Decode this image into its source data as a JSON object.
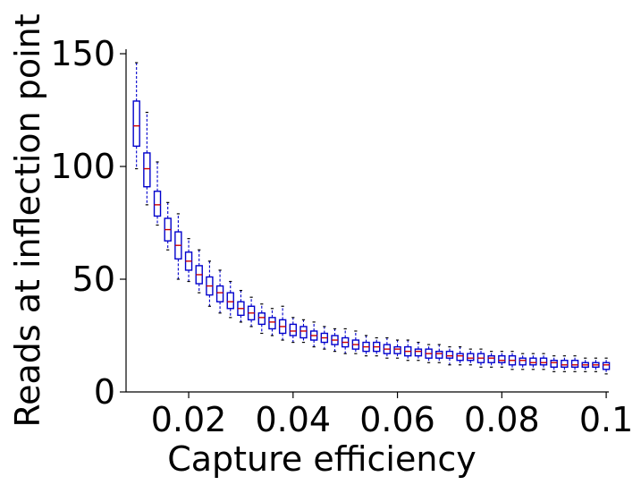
{
  "chart_data": {
    "type": "box",
    "xlabel": "Capture efficiency",
    "ylabel": "Reads at inflection point",
    "xlim": [
      0.008,
      0.1005
    ],
    "ylim": [
      0,
      152
    ],
    "xticks": [
      {
        "value": 0.02,
        "label": "0.02"
      },
      {
        "value": 0.04,
        "label": "0.04"
      },
      {
        "value": 0.06,
        "label": "0.06"
      },
      {
        "value": 0.08,
        "label": "0.08"
      },
      {
        "value": 0.1,
        "label": "0.1"
      }
    ],
    "yticks": [
      {
        "value": 0,
        "label": "0"
      },
      {
        "value": 50,
        "label": "50"
      },
      {
        "value": 100,
        "label": "100"
      },
      {
        "value": 150,
        "label": "150"
      }
    ],
    "grid": false,
    "colors": {
      "box": "#0000cc",
      "median": "#cc0000",
      "cap": "#000000"
    },
    "boxes": [
      {
        "x": 0.01,
        "whislo": 99,
        "q1": 109,
        "med": 118,
        "q3": 129,
        "whishi": 146
      },
      {
        "x": 0.012,
        "whislo": 83,
        "q1": 91,
        "med": 99,
        "q3": 106,
        "whishi": 124
      },
      {
        "x": 0.014,
        "whislo": 74,
        "q1": 78,
        "med": 83,
        "q3": 89,
        "whishi": 102
      },
      {
        "x": 0.016,
        "whislo": 63,
        "q1": 67,
        "med": 72,
        "q3": 77,
        "whishi": 84
      },
      {
        "x": 0.018,
        "whislo": 50,
        "q1": 59,
        "med": 65,
        "q3": 71,
        "whishi": 79
      },
      {
        "x": 0.02,
        "whislo": 49,
        "q1": 54,
        "med": 58,
        "q3": 62,
        "whishi": 68
      },
      {
        "x": 0.022,
        "whislo": 44,
        "q1": 48,
        "med": 52,
        "q3": 56,
        "whishi": 63
      },
      {
        "x": 0.024,
        "whislo": 38,
        "q1": 43,
        "med": 47,
        "q3": 51,
        "whishi": 58
      },
      {
        "x": 0.026,
        "whislo": 35,
        "q1": 40,
        "med": 44,
        "q3": 47,
        "whishi": 54
      },
      {
        "x": 0.028,
        "whislo": 33,
        "q1": 37,
        "med": 40,
        "q3": 44,
        "whishi": 49
      },
      {
        "x": 0.03,
        "whislo": 31,
        "q1": 34,
        "med": 37,
        "q3": 40,
        "whishi": 45
      },
      {
        "x": 0.032,
        "whislo": 29,
        "q1": 32,
        "med": 35,
        "q3": 38,
        "whishi": 42
      },
      {
        "x": 0.034,
        "whislo": 26,
        "q1": 30,
        "med": 33,
        "q3": 35,
        "whishi": 39
      },
      {
        "x": 0.036,
        "whislo": 25,
        "q1": 28,
        "med": 31,
        "q3": 33,
        "whishi": 37
      },
      {
        "x": 0.038,
        "whislo": 23,
        "q1": 26,
        "med": 29,
        "q3": 32,
        "whishi": 38
      },
      {
        "x": 0.04,
        "whislo": 22,
        "q1": 25,
        "med": 27,
        "q3": 30,
        "whishi": 33
      },
      {
        "x": 0.042,
        "whislo": 22,
        "q1": 24,
        "med": 27,
        "q3": 29,
        "whishi": 32
      },
      {
        "x": 0.044,
        "whislo": 20,
        "q1": 23,
        "med": 25,
        "q3": 27,
        "whishi": 31
      },
      {
        "x": 0.046,
        "whislo": 19,
        "q1": 22,
        "med": 24,
        "q3": 26,
        "whishi": 29
      },
      {
        "x": 0.048,
        "whislo": 18,
        "q1": 21,
        "med": 23,
        "q3": 25,
        "whishi": 28
      },
      {
        "x": 0.05,
        "whislo": 17,
        "q1": 20,
        "med": 22,
        "q3": 24,
        "whishi": 28
      },
      {
        "x": 0.052,
        "whislo": 17,
        "q1": 19,
        "med": 21,
        "q3": 23,
        "whishi": 27
      },
      {
        "x": 0.054,
        "whislo": 16,
        "q1": 18,
        "med": 20,
        "q3": 22,
        "whishi": 25
      },
      {
        "x": 0.056,
        "whislo": 16,
        "q1": 18,
        "med": 20,
        "q3": 22,
        "whishi": 24
      },
      {
        "x": 0.058,
        "whislo": 15,
        "q1": 17,
        "med": 19,
        "q3": 21,
        "whishi": 24
      },
      {
        "x": 0.06,
        "whislo": 15,
        "q1": 17,
        "med": 19,
        "q3": 20,
        "whishi": 23
      },
      {
        "x": 0.062,
        "whislo": 14,
        "q1": 16,
        "med": 18,
        "q3": 20,
        "whishi": 23
      },
      {
        "x": 0.064,
        "whislo": 14,
        "q1": 16,
        "med": 18,
        "q3": 19,
        "whishi": 22
      },
      {
        "x": 0.066,
        "whislo": 13,
        "q1": 15,
        "med": 17,
        "q3": 19,
        "whishi": 21
      },
      {
        "x": 0.068,
        "whislo": 13,
        "q1": 15,
        "med": 17,
        "q3": 18,
        "whishi": 21
      },
      {
        "x": 0.07,
        "whislo": 12,
        "q1": 15,
        "med": 16,
        "q3": 18,
        "whishi": 20
      },
      {
        "x": 0.072,
        "whislo": 12,
        "q1": 14,
        "med": 16,
        "q3": 17,
        "whishi": 20
      },
      {
        "x": 0.074,
        "whislo": 12,
        "q1": 14,
        "med": 15,
        "q3": 17,
        "whishi": 19
      },
      {
        "x": 0.076,
        "whislo": 11,
        "q1": 13,
        "med": 15,
        "q3": 17,
        "whishi": 19
      },
      {
        "x": 0.078,
        "whislo": 11,
        "q1": 13,
        "med": 15,
        "q3": 16,
        "whishi": 18
      },
      {
        "x": 0.08,
        "whislo": 11,
        "q1": 13,
        "med": 14,
        "q3": 16,
        "whishi": 18
      },
      {
        "x": 0.082,
        "whislo": 10,
        "q1": 12,
        "med": 14,
        "q3": 16,
        "whishi": 18
      },
      {
        "x": 0.084,
        "whislo": 10,
        "q1": 12,
        "med": 14,
        "q3": 15,
        "whishi": 17
      },
      {
        "x": 0.086,
        "whislo": 10,
        "q1": 12,
        "med": 13,
        "q3": 15,
        "whishi": 17
      },
      {
        "x": 0.088,
        "whislo": 10,
        "q1": 12,
        "med": 13,
        "q3": 15,
        "whishi": 17
      },
      {
        "x": 0.09,
        "whislo": 9,
        "q1": 11,
        "med": 13,
        "q3": 14,
        "whishi": 16
      },
      {
        "x": 0.092,
        "whislo": 9,
        "q1": 11,
        "med": 12,
        "q3": 14,
        "whishi": 16
      },
      {
        "x": 0.094,
        "whislo": 9,
        "q1": 11,
        "med": 12,
        "q3": 14,
        "whishi": 16
      },
      {
        "x": 0.096,
        "whislo": 9,
        "q1": 11,
        "med": 12,
        "q3": 13,
        "whishi": 15
      },
      {
        "x": 0.098,
        "whislo": 9,
        "q1": 11,
        "med": 12,
        "q3": 13,
        "whishi": 15
      },
      {
        "x": 0.1,
        "whislo": 8,
        "q1": 10,
        "med": 12,
        "q3": 13,
        "whishi": 15
      }
    ]
  }
}
